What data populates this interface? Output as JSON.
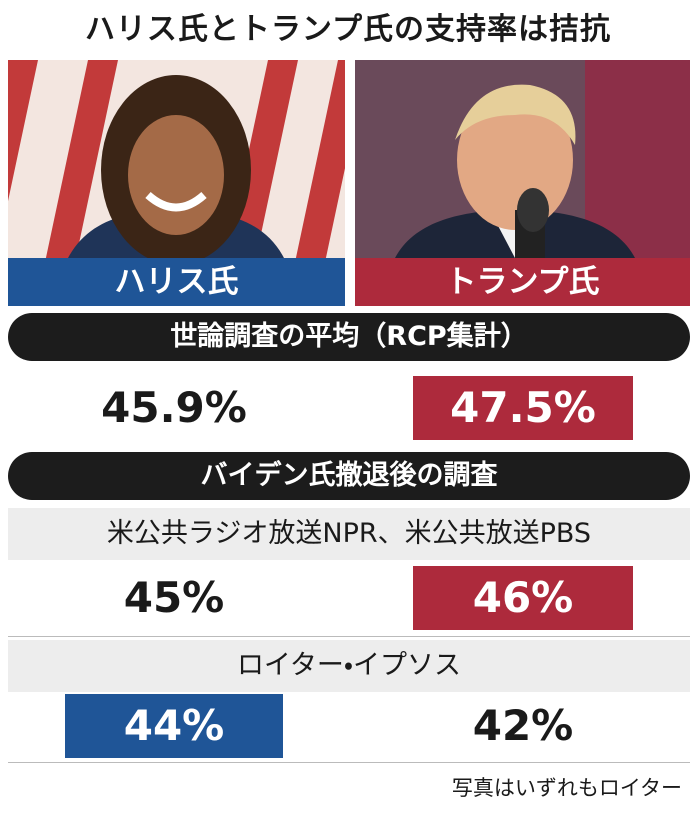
{
  "title": "ハリス氏とトランプ氏の支持率は拮抗",
  "candidates": [
    {
      "name": "ハリス氏"
    },
    {
      "name": "トランプ氏"
    }
  ],
  "sections": [
    {
      "heading": "世論調査の平均（RCP集計）",
      "polls": [
        {
          "values": [
            "45.9%",
            "47.5%"
          ]
        }
      ]
    },
    {
      "heading": "バイデン氏撤退後の調査",
      "polls": [
        {
          "source": "米公共ラジオ放送NPR、米公共放送PBS",
          "values": [
            "45%",
            "46%"
          ]
        },
        {
          "source": "ロイター・イプソス",
          "values": [
            "44%",
            "42%"
          ]
        }
      ]
    }
  ],
  "credit": "写真はいずれもロイター"
}
